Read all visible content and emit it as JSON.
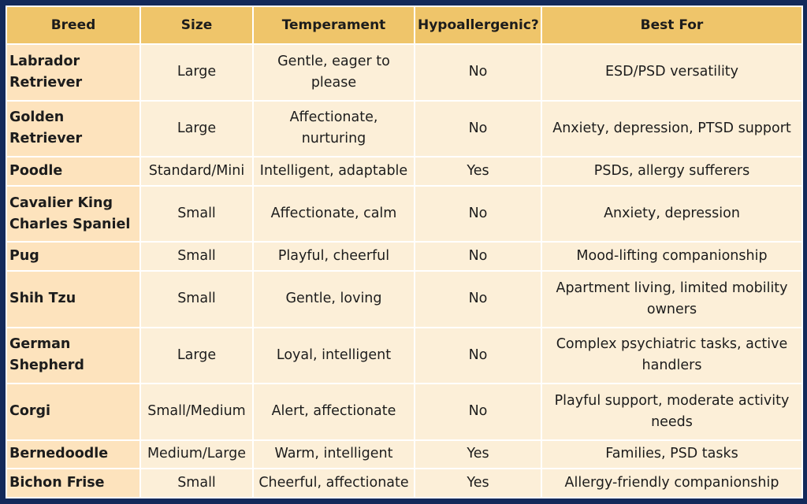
{
  "table": {
    "headers": [
      "Breed",
      "Size",
      "Temperament",
      "Hypoallergenic?",
      "Best For"
    ],
    "rows": [
      {
        "breed": "Labrador Retriever",
        "size": "Large",
        "temperament": "Gentle, eager to please",
        "hypoallergenic": "No",
        "best_for": "ESD/PSD versatility"
      },
      {
        "breed": "Golden Retriever",
        "size": "Large",
        "temperament": "Affectionate, nurturing",
        "hypoallergenic": "No",
        "best_for": "Anxiety, depression, PTSD support"
      },
      {
        "breed": "Poodle",
        "size": "Standard/Mini",
        "temperament": "Intelligent, adaptable",
        "hypoallergenic": "Yes",
        "best_for": "PSDs, allergy sufferers"
      },
      {
        "breed": "Cavalier King Charles Spaniel",
        "size": "Small",
        "temperament": "Affectionate, calm",
        "hypoallergenic": "No",
        "best_for": "Anxiety, depression"
      },
      {
        "breed": "Pug",
        "size": "Small",
        "temperament": "Playful, cheerful",
        "hypoallergenic": "No",
        "best_for": "Mood-lifting companionship"
      },
      {
        "breed": "Shih Tzu",
        "size": "Small",
        "temperament": "Gentle, loving",
        "hypoallergenic": "No",
        "best_for": "Apartment living, limited mobility owners"
      },
      {
        "breed": "German Shepherd",
        "size": "Large",
        "temperament": "Loyal, intelligent",
        "hypoallergenic": "No",
        "best_for": "Complex psychiatric tasks, active handlers"
      },
      {
        "breed": "Corgi",
        "size": "Small/Medium",
        "temperament": "Alert, affectionate",
        "hypoallergenic": "No",
        "best_for": "Playful support, moderate activity needs"
      },
      {
        "breed": "Bernedoodle",
        "size": "Medium/Large",
        "temperament": "Warm, intelligent",
        "hypoallergenic": "Yes",
        "best_for": "Families, PSD tasks"
      },
      {
        "breed": "Bichon Frise",
        "size": "Small",
        "temperament": "Cheerful, affectionate",
        "hypoallergenic": "Yes",
        "best_for": "Allergy-friendly companionship"
      }
    ]
  }
}
